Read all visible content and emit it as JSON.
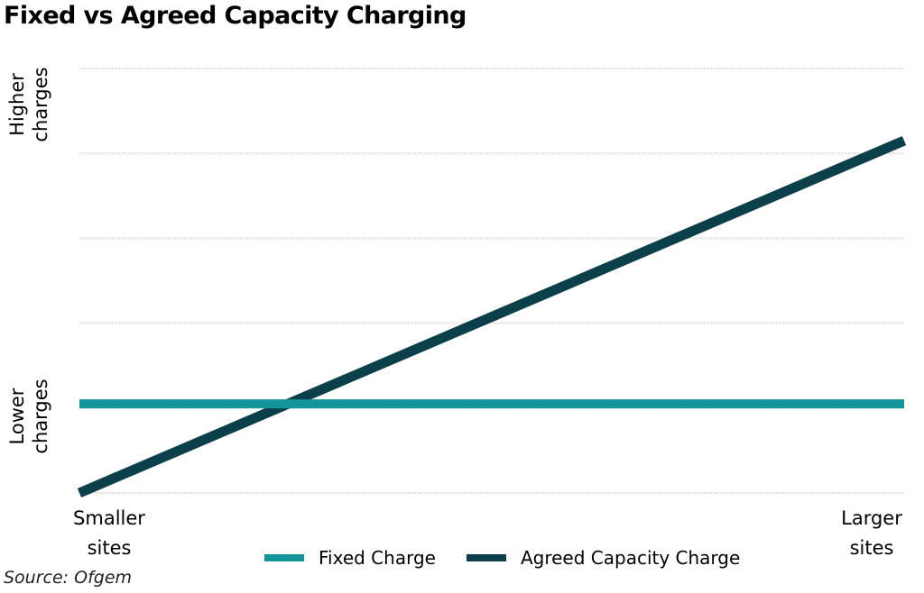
{
  "chart_data": {
    "type": "line",
    "title": "Fixed vs Agreed Capacity Charging",
    "x": [
      0,
      1
    ],
    "x_tick_labels": [
      "Smaller\nsites",
      "Larger\nsites"
    ],
    "y_tick_labels": [
      "Lower\ncharges",
      "Higher\ncharges"
    ],
    "ylim": [
      0,
      5
    ],
    "grid": true,
    "gridlines": [
      0,
      1,
      2,
      3,
      4,
      5
    ],
    "series": [
      {
        "name": "Fixed Charge",
        "color": "#12959a",
        "values": [
          1.05,
          1.05
        ]
      },
      {
        "name": "Agreed Capacity Charge",
        "color": "#0b3f49",
        "values": [
          0.0,
          4.15
        ]
      }
    ],
    "legend_position": "bottom",
    "source": "Source: Ofgem"
  }
}
